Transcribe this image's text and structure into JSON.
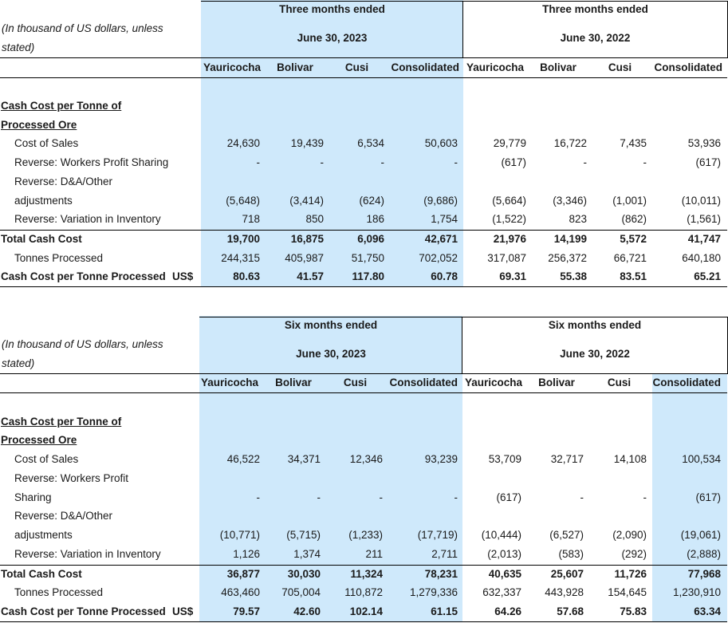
{
  "units_note": "(In thousand of US dollars, unless stated)",
  "tables": [
    {
      "period_current": "Three months ended",
      "date_current": "June 30, 2023",
      "period_prior": "Three months ended",
      "date_prior": "June 30, 2022",
      "columns": [
        "Yauricocha",
        "Bolivar",
        "Cusi",
        "Consolidated",
        "Yauricocha",
        "Bolivar",
        "Cusi",
        "Consolidated"
      ],
      "section_title": "Cash Cost per Tonne of Processed Ore",
      "rows": [
        {
          "label": "Cost of Sales",
          "values": [
            "24,630",
            "19,439",
            "6,534",
            "50,603",
            "29,779",
            "16,722",
            "7,435",
            "53,936"
          ]
        },
        {
          "label": "Reverse: Workers Profit Sharing",
          "values": [
            "-",
            "-",
            "-",
            "-",
            "(617)",
            "-",
            "-",
            "(617)"
          ]
        },
        {
          "label": "Reverse: D&A/Other adjustments",
          "values": [
            "(5,648)",
            "(3,414)",
            "(624)",
            "(9,686)",
            "(5,664)",
            "(3,346)",
            "(1,001)",
            "(10,011)"
          ]
        },
        {
          "label": "Reverse: Variation in Inventory",
          "values": [
            "718",
            "850",
            "186",
            "1,754",
            "(1,522)",
            "823",
            "(862)",
            "(1,561)"
          ]
        },
        {
          "label": "Total Cash Cost",
          "values": [
            "19,700",
            "16,875",
            "6,096",
            "42,671",
            "21,976",
            "14,199",
            "5,572",
            "41,747"
          ]
        },
        {
          "label": "Tonnes Processed",
          "values": [
            "244,315",
            "405,987",
            "51,750",
            "702,052",
            "317,087",
            "256,372",
            "66,721",
            "640,180"
          ]
        },
        {
          "label": "Cash Cost per Tonne Processed",
          "unit": "US$",
          "values": [
            "80.63",
            "41.57",
            "117.80",
            "60.78",
            "69.31",
            "55.38",
            "83.51",
            "65.21"
          ]
        }
      ]
    },
    {
      "period_current": "Six months ended",
      "date_current": "June 30, 2023",
      "period_prior": "Six months ended",
      "date_prior": "June 30, 2022",
      "columns": [
        "Yauricocha",
        "Bolivar",
        "Cusi",
        "Consolidated",
        "Yauricocha",
        "Bolivar",
        "Cusi",
        "Consolidated"
      ],
      "section_title": "Cash Cost per Tonne of Processed Ore",
      "rows": [
        {
          "label": "Cost of Sales",
          "values": [
            "46,522",
            "34,371",
            "12,346",
            "93,239",
            "53,709",
            "32,717",
            "14,108",
            "100,534"
          ]
        },
        {
          "label": "Reverse: Workers Profit Sharing",
          "values": [
            "-",
            "-",
            "-",
            "-",
            "(617)",
            "-",
            "-",
            "(617)"
          ]
        },
        {
          "label": "Reverse: D&A/Other adjustments",
          "values": [
            "(10,771)",
            "(5,715)",
            "(1,233)",
            "(17,719)",
            "(10,444)",
            "(6,527)",
            "(2,090)",
            "(19,061)"
          ]
        },
        {
          "label": "Reverse: Variation in Inventory",
          "values": [
            "1,126",
            "1,374",
            "211",
            "2,711",
            "(2,013)",
            "(583)",
            "(292)",
            "(2,888)"
          ]
        },
        {
          "label": "Total Cash Cost",
          "values": [
            "36,877",
            "30,030",
            "11,324",
            "78,231",
            "40,635",
            "25,607",
            "11,726",
            "77,968"
          ]
        },
        {
          "label": "Tonnes Processed",
          "values": [
            "463,460",
            "705,004",
            "110,872",
            "1,279,336",
            "632,337",
            "443,928",
            "154,645",
            "1,230,910"
          ]
        },
        {
          "label": "Cash Cost per Tonne Processed",
          "unit": "US$",
          "values": [
            "79.57",
            "42.60",
            "102.14",
            "61.15",
            "64.26",
            "57.68",
            "75.83",
            "63.34"
          ]
        }
      ]
    }
  ]
}
